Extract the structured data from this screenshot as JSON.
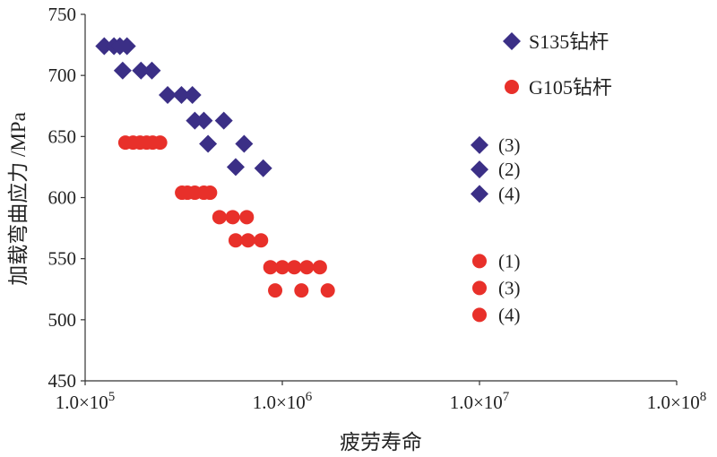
{
  "chart_data": {
    "type": "scatter",
    "title": "",
    "xlabel": "疲劳寿命",
    "ylabel": "加载弯曲应力 /MPa",
    "x_scale": "log",
    "xlim": [
      100000,
      100000000
    ],
    "ylim": [
      450,
      750
    ],
    "grid": false,
    "legend_position": "top-right",
    "x_ticks": [
      {
        "value": 100000,
        "label": "1.0×10",
        "exp": "5"
      },
      {
        "value": 1000000,
        "label": "1.0×10",
        "exp": "6"
      },
      {
        "value": 10000000,
        "label": "1.0×10",
        "exp": "7"
      },
      {
        "value": 100000000,
        "label": "1.0×10",
        "exp": "8"
      }
    ],
    "y_ticks": [
      {
        "value": 450,
        "label": "450"
      },
      {
        "value": 500,
        "label": "500"
      },
      {
        "value": 550,
        "label": "550"
      },
      {
        "value": 600,
        "label": "600"
      },
      {
        "value": 650,
        "label": "650"
      },
      {
        "value": 700,
        "label": "700"
      },
      {
        "value": 750,
        "label": "750"
      }
    ],
    "series": [
      {
        "name": "S135钻杆",
        "marker": "diamond",
        "color": "#3b2f86",
        "points": [
          {
            "x": 125000,
            "y": 724
          },
          {
            "x": 140000,
            "y": 724
          },
          {
            "x": 150000,
            "y": 724
          },
          {
            "x": 163000,
            "y": 724
          },
          {
            "x": 155000,
            "y": 704
          },
          {
            "x": 192000,
            "y": 704
          },
          {
            "x": 218000,
            "y": 704
          },
          {
            "x": 262000,
            "y": 684
          },
          {
            "x": 308000,
            "y": 684
          },
          {
            "x": 350000,
            "y": 684
          },
          {
            "x": 360000,
            "y": 663
          },
          {
            "x": 400000,
            "y": 663
          },
          {
            "x": 505000,
            "y": 663
          },
          {
            "x": 420000,
            "y": 644
          },
          {
            "x": 640000,
            "y": 644
          },
          {
            "x": 580000,
            "y": 625
          },
          {
            "x": 800000,
            "y": 624
          }
        ]
      },
      {
        "name": "G105钻杆",
        "marker": "circle",
        "color": "#e8302a",
        "points": [
          {
            "x": 160000,
            "y": 645
          },
          {
            "x": 175000,
            "y": 645
          },
          {
            "x": 190000,
            "y": 645
          },
          {
            "x": 205000,
            "y": 645
          },
          {
            "x": 220000,
            "y": 645
          },
          {
            "x": 240000,
            "y": 645
          },
          {
            "x": 310000,
            "y": 604
          },
          {
            "x": 330000,
            "y": 604
          },
          {
            "x": 360000,
            "y": 604
          },
          {
            "x": 400000,
            "y": 604
          },
          {
            "x": 430000,
            "y": 604
          },
          {
            "x": 480000,
            "y": 584
          },
          {
            "x": 560000,
            "y": 584
          },
          {
            "x": 660000,
            "y": 584
          },
          {
            "x": 580000,
            "y": 565
          },
          {
            "x": 670000,
            "y": 565
          },
          {
            "x": 780000,
            "y": 565
          },
          {
            "x": 870000,
            "y": 543
          },
          {
            "x": 1000000,
            "y": 543
          },
          {
            "x": 1150000,
            "y": 543
          },
          {
            "x": 1330000,
            "y": 543
          },
          {
            "x": 1550000,
            "y": 543
          },
          {
            "x": 920000,
            "y": 524
          },
          {
            "x": 1250000,
            "y": 524
          },
          {
            "x": 1700000,
            "y": 524
          }
        ]
      }
    ],
    "runout_points": [
      {
        "series": "S135钻杆",
        "x": 10000000,
        "y": 643,
        "label": "(3)"
      },
      {
        "series": "S135钻杆",
        "x": 10000000,
        "y": 623,
        "label": "(2)"
      },
      {
        "series": "S135钻杆",
        "x": 10000000,
        "y": 603,
        "label": "(4)"
      },
      {
        "series": "G105钻杆",
        "x": 10000000,
        "y": 548,
        "label": "(1)"
      },
      {
        "series": "G105钻杆",
        "x": 10000000,
        "y": 526,
        "label": "(3)"
      },
      {
        "series": "G105钻杆",
        "x": 10000000,
        "y": 504,
        "label": "(4)"
      }
    ]
  }
}
